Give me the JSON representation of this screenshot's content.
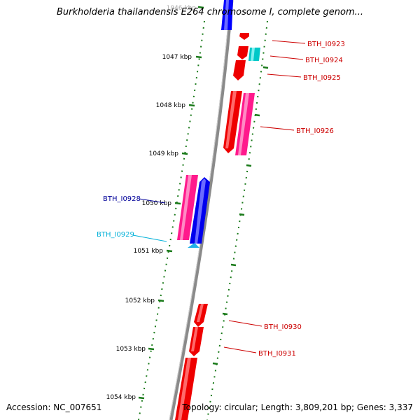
{
  "title": "Burkholderia thailandensis E264 chromosome I, complete genom...",
  "footer": {
    "accession": "Accession: NC_007651",
    "topology": "Topology: circular; Length: 3,809,201 bp; Genes: 3,337"
  },
  "colors": {
    "plus_strand_gene": "#ff0000",
    "minus_strand_gene": "#0000ff",
    "pink_gene": "#ff1493",
    "cyan_gene": "#00cccc",
    "tick_ruler": "#006400",
    "backbone": "#808080",
    "label_red": "#cc0000",
    "label_blue": "#000099",
    "label_cyan": "#00b0d8"
  },
  "ruler": {
    "ticks": [
      {
        "label": "1046 kbp"
      },
      {
        "label": "1047 kbp"
      },
      {
        "label": "1048 kbp"
      },
      {
        "label": "1049 kbp"
      },
      {
        "label": "1050 kbp"
      },
      {
        "label": "1051 kbp"
      },
      {
        "label": "1052 kbp"
      },
      {
        "label": "1053 kbp"
      },
      {
        "label": "1054 kbp"
      }
    ]
  },
  "gene_labels": [
    {
      "name": "BTH_I0923",
      "color": "#cc0000"
    },
    {
      "name": "BTH_I0924",
      "color": "#cc0000"
    },
    {
      "name": "BTH_I0925",
      "color": "#cc0000"
    },
    {
      "name": "BTH_I0926",
      "color": "#cc0000"
    },
    {
      "name": "BTH_I0928",
      "color": "#000099"
    },
    {
      "name": "BTH_I0929",
      "color": "#00b0d8"
    },
    {
      "name": "BTH_I0930",
      "color": "#cc0000"
    },
    {
      "name": "BTH_I0931",
      "color": "#cc0000"
    }
  ]
}
